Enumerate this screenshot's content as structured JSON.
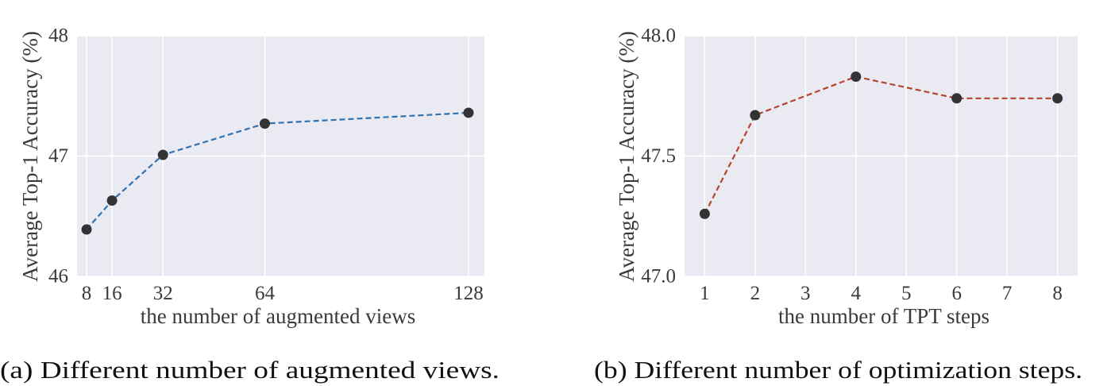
{
  "chart_data": [
    {
      "type": "line",
      "caption": "(a) Different number of augmented views.",
      "xlabel": "the number of augmented views",
      "ylabel": "Average Top-1 Accuracy (%)",
      "xlim": [
        5,
        133
      ],
      "ylim": [
        46,
        48
      ],
      "x_ticks": [
        8,
        16,
        32,
        64,
        128
      ],
      "x_tick_labels": [
        "8",
        "16",
        "32",
        "64",
        "128"
      ],
      "y_ticks": [
        46,
        47,
        48
      ],
      "y_tick_labels": [
        "46",
        "47",
        "48"
      ],
      "grid": true,
      "line_style": "dashed",
      "series": [
        {
          "x": [
            8,
            16,
            32,
            64,
            128
          ],
          "values": [
            46.39,
            46.63,
            47.01,
            47.27,
            47.36
          ],
          "color": "#2f72b0"
        }
      ]
    },
    {
      "type": "line",
      "caption": "(b) Different number of optimization steps.",
      "xlabel": "the number of TPT steps",
      "ylabel": "Average Top-1 Accuracy (%)",
      "xlim": [
        0.6,
        8.4
      ],
      "ylim": [
        47.0,
        48.0
      ],
      "x_ticks": [
        1,
        2,
        3,
        4,
        5,
        6,
        7,
        8
      ],
      "x_tick_labels": [
        "1",
        "2",
        "3",
        "4",
        "5",
        "6",
        "7",
        "8"
      ],
      "y_ticks": [
        47.0,
        47.5,
        48.0
      ],
      "y_tick_labels": [
        "47.0",
        "47.5",
        "48.0"
      ],
      "grid": true,
      "line_style": "dashed",
      "series": [
        {
          "x": [
            1,
            2,
            4,
            6,
            8
          ],
          "values": [
            47.26,
            47.67,
            47.83,
            47.74,
            47.74
          ],
          "color": "#b5452d"
        }
      ]
    }
  ],
  "style": {
    "plot_background": "#eaeaf2",
    "grid_color": "#ffffff",
    "marker_color": "#333333"
  }
}
